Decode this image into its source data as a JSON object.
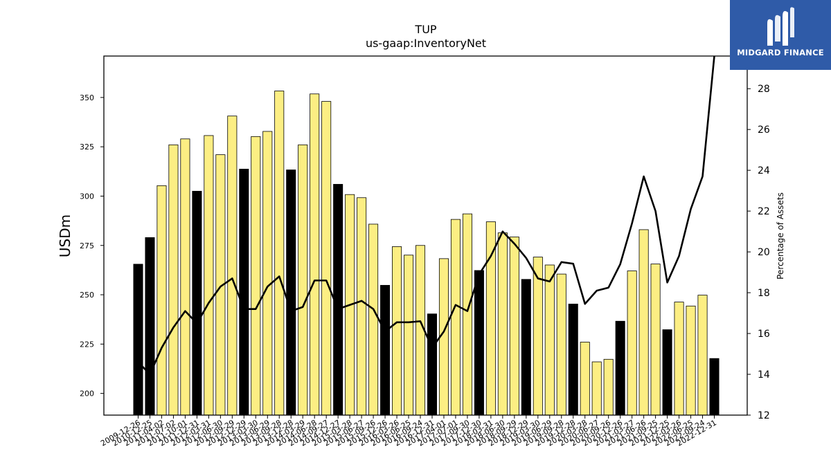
{
  "brand": {
    "name": "MIDGARD FINANCE",
    "logo_icon": "midgard-m-icon",
    "background_color": "#2f5ba8"
  },
  "chart_data": {
    "type": "bar",
    "title": "TUP",
    "subtitle": "us-gaap:InventoryNet",
    "ylabel": "USDm",
    "y2label": "Percentage of Assets",
    "ylim": [
      189,
      371
    ],
    "y2lim": [
      12,
      29.6
    ],
    "yticks": [
      200,
      225,
      250,
      275,
      300,
      325,
      350
    ],
    "y2ticks": [
      12,
      14,
      16,
      18,
      20,
      22,
      24,
      26,
      28
    ],
    "colors": {
      "q4_bar": "#000000",
      "other_bar": "#fcee83",
      "line": "#000000"
    },
    "categories": [
      "2009-12-26",
      "2010-12-25",
      "2011-04-02",
      "2011-07-02",
      "2011-10-01",
      "2011-12-31",
      "2012-03-31",
      "2012-06-30",
      "2012-09-29",
      "2012-12-29",
      "2013-03-30",
      "2013-06-29",
      "2013-09-28",
      "2013-12-28",
      "2014-03-29",
      "2014-06-28",
      "2014-09-27",
      "2014-12-27",
      "2015-03-28",
      "2015-06-27",
      "2015-09-26",
      "2015-12-26",
      "2016-03-26",
      "2016-06-25",
      "2016-09-24",
      "2016-12-31",
      "2017-04-01",
      "2017-07-01",
      "2017-09-30",
      "2017-12-30",
      "2018-03-31",
      "2018-06-30",
      "2018-09-29",
      "2018-12-29",
      "2019-03-30",
      "2019-06-29",
      "2019-09-28",
      "2019-12-28",
      "2020-03-28",
      "2020-06-27",
      "2020-09-26",
      "2020-12-26",
      "2021-03-27",
      "2021-06-26",
      "2021-09-25",
      "2021-12-25",
      "2022-03-26",
      "2022-06-25",
      "2022-09-24",
      "2022-12-31"
    ],
    "values": [
      265.5,
      279,
      305.3,
      326,
      329,
      302.5,
      330.7,
      321,
      340.6,
      313.7,
      330.2,
      332.8,
      353.3,
      313.3,
      326,
      351.8,
      348,
      306,
      300.8,
      299.2,
      285.8,
      254.8,
      274.4,
      270.1,
      275,
      240.3,
      268.3,
      288.2,
      291,
      262.3,
      287,
      281.4,
      279.3,
      257.8,
      269.1,
      265.1,
      260.5,
      245.3,
      226,
      216,
      217.3,
      236.6,
      262.1,
      283,
      265.6,
      232.3,
      246.3,
      244.3,
      249.8,
      217.7
    ],
    "is_q4": [
      true,
      true,
      false,
      false,
      false,
      true,
      false,
      false,
      false,
      true,
      false,
      false,
      false,
      true,
      false,
      false,
      false,
      true,
      false,
      false,
      false,
      true,
      false,
      false,
      false,
      true,
      false,
      false,
      false,
      true,
      false,
      false,
      false,
      true,
      false,
      false,
      false,
      true,
      false,
      false,
      false,
      true,
      false,
      false,
      false,
      true,
      false,
      false,
      false,
      true
    ],
    "series": [
      {
        "name": "Percentage of Assets",
        "values": [
          14.6,
          14,
          15.3,
          16.3,
          17.1,
          16.5,
          17.5,
          18.3,
          18.7,
          17.2,
          17.2,
          18.3,
          18.8,
          17.1,
          17.3,
          18.6,
          18.6,
          17.2,
          17.4,
          17.6,
          17.2,
          16.1,
          16.55,
          16.55,
          16.6,
          15.3,
          16.1,
          17.4,
          17.1,
          18.9,
          19.8,
          21,
          20.4,
          19.7,
          18.7,
          18.55,
          19.5,
          19.42,
          17.45,
          18.1,
          18.25,
          19.4,
          21.4,
          23.7,
          22,
          18.5,
          19.8,
          22.1,
          23.7,
          29.6
        ]
      }
    ]
  }
}
